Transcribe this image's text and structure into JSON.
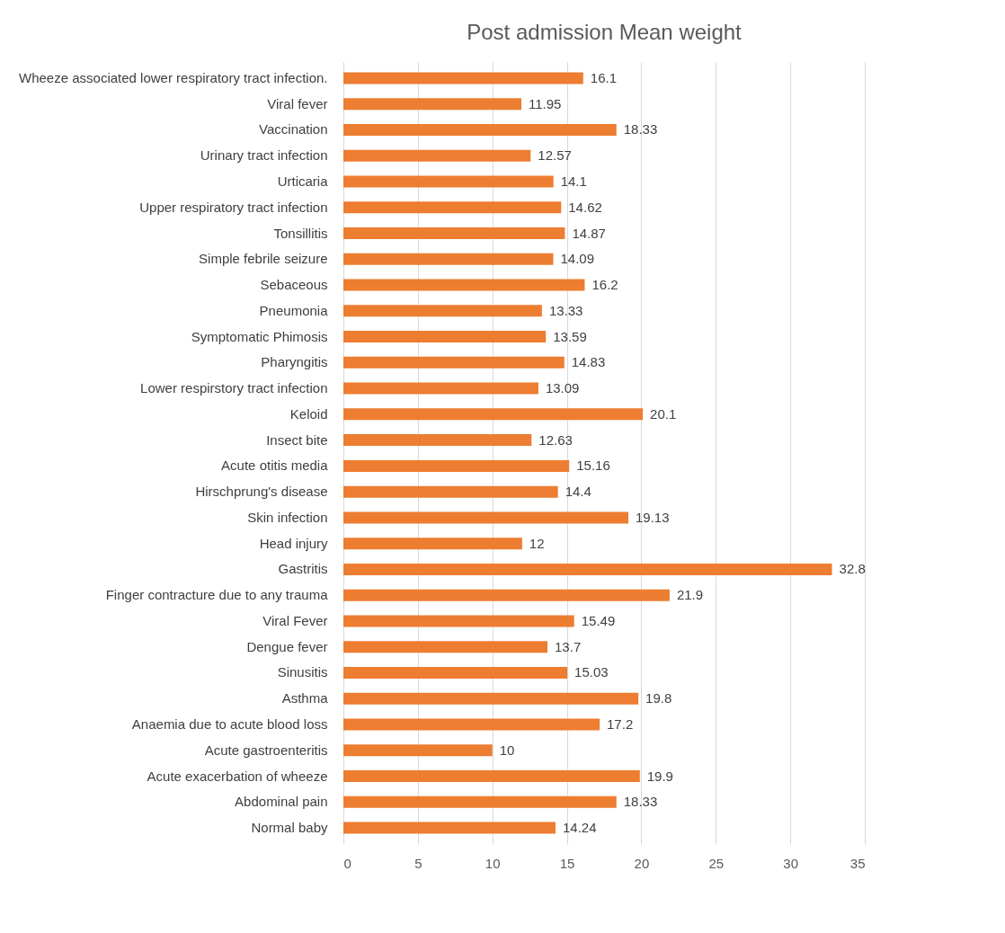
{
  "chart_data": {
    "type": "bar",
    "orientation": "horizontal",
    "title": "Post admission Mean weight",
    "categories": [
      "Wheeze associated lower respiratory tract infection.",
      "Viral fever",
      "Vaccination",
      "Urinary tract infection",
      "Urticaria",
      "Upper respiratory tract infection",
      "Tonsillitis",
      "Simple febrile seizure",
      "Sebaceous",
      "Pneumonia",
      "Symptomatic Phimosis",
      "Pharyngitis",
      "Lower respirstory tract infection",
      "Keloid",
      "Insect bite",
      "Acute otitis media",
      "Hirschprung's disease",
      "Skin infection",
      "Head injury",
      "Gastritis",
      "Finger contracture due to any trauma",
      "Viral Fever",
      "Dengue fever",
      "Sinusitis",
      "Asthma",
      "Anaemia due to acute blood loss",
      "Acute gastroenteritis",
      "Acute exacerbation of wheeze",
      "Abdominal pain",
      "Normal baby"
    ],
    "values": [
      16.1,
      11.95,
      18.33,
      12.57,
      14.1,
      14.62,
      14.87,
      14.09,
      16.2,
      13.33,
      13.59,
      14.83,
      13.09,
      20.1,
      12.63,
      15.16,
      14.4,
      19.13,
      12,
      32.8,
      21.9,
      15.49,
      13.7,
      15.03,
      19.8,
      17.2,
      10,
      19.9,
      18.33,
      14.24
    ],
    "color": "#ed7d31",
    "xlim": [
      0,
      35
    ],
    "xticks": [
      0,
      5,
      10,
      15,
      20,
      25,
      30,
      35
    ],
    "grid": "x",
    "data_labels": true
  }
}
